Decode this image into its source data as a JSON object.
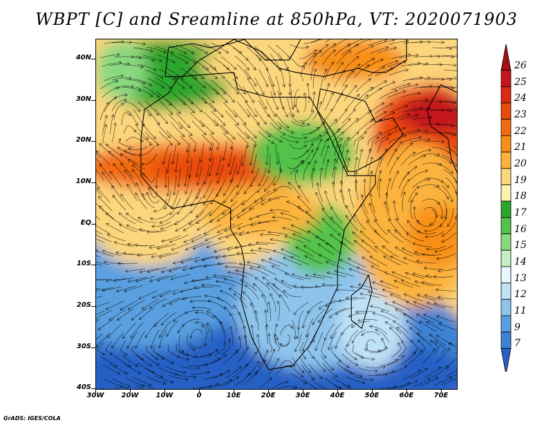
{
  "title": "WBPT [C] and Sreamline at 850hPa, VT: 2020071903",
  "credit": "GrADS: IGES/COLA",
  "map": {
    "lat_labels": [
      "40N",
      "30N",
      "20N",
      "10N",
      "EQ",
      "10S",
      "20S",
      "30S",
      "40S"
    ],
    "lon_labels": [
      "30W",
      "20W",
      "10W",
      "0",
      "10E",
      "20E",
      "30E",
      "40E",
      "50E",
      "60E",
      "70E"
    ],
    "lat_range": [
      -40,
      45
    ],
    "lon_range": [
      -30,
      75
    ]
  },
  "colorbar": {
    "labels": [
      "26",
      "25",
      "24",
      "23",
      "22",
      "21",
      "20",
      "19",
      "18",
      "17",
      "16",
      "15",
      "14",
      "13",
      "12",
      "11",
      "9",
      "7"
    ],
    "colors": [
      "#a50f15",
      "#c4161c",
      "#dc2a12",
      "#ea4a0c",
      "#f26a10",
      "#f88f17",
      "#fbb33c",
      "#fcd67c",
      "#fbf2b0",
      "#2ea62e",
      "#52c24a",
      "#8ad880",
      "#c4eec0",
      "#e8f8fc",
      "#bfe2f6",
      "#8ec4ec",
      "#5aa0e0",
      "#3d82d4",
      "#2860c4"
    ]
  }
}
